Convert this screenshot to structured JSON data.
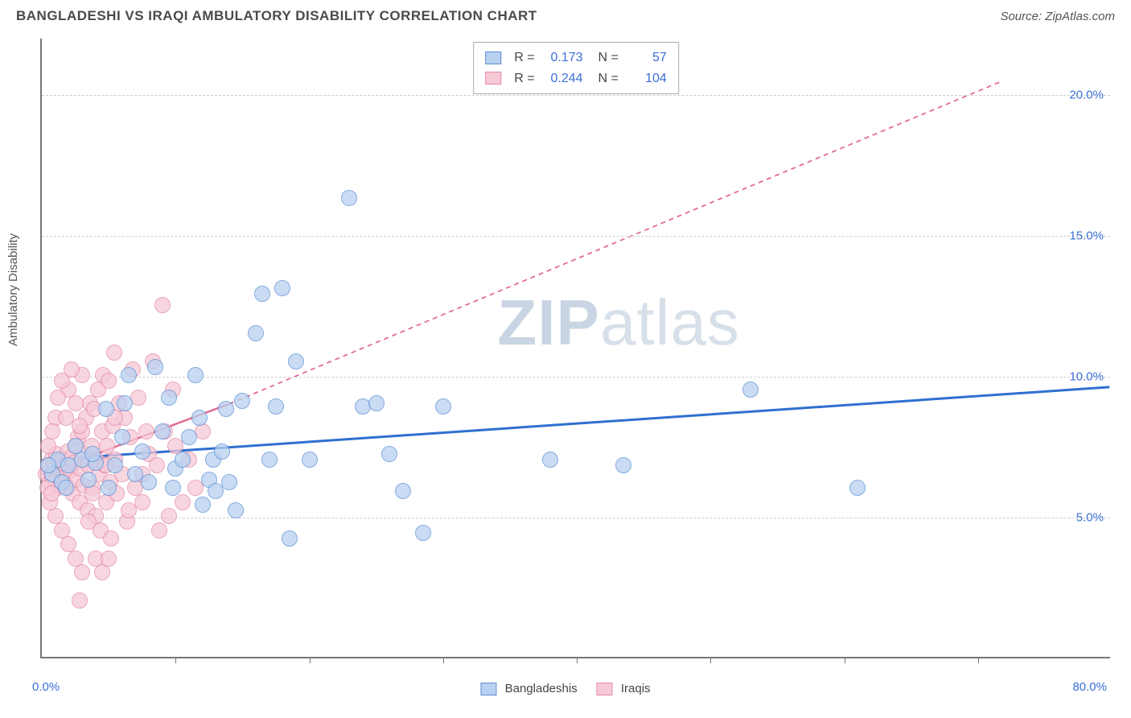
{
  "title": "BANGLADESHI VS IRAQI AMBULATORY DISABILITY CORRELATION CHART",
  "source_label": "Source: ZipAtlas.com",
  "y_axis_label": "Ambulatory Disability",
  "watermark": {
    "part1": "ZIP",
    "part2": "atlas"
  },
  "chart": {
    "type": "scatter",
    "background_color": "#ffffff",
    "grid_color": "#d0d0d0",
    "axis_color": "#777777",
    "xlim": [
      0,
      80
    ],
    "ylim": [
      0,
      22
    ],
    "x_ticks": [
      10,
      20,
      30,
      40,
      50,
      60,
      70
    ],
    "y_grid": [
      {
        "value": 5,
        "label": "5.0%"
      },
      {
        "value": 10,
        "label": "10.0%"
      },
      {
        "value": 15,
        "label": "15.0%"
      },
      {
        "value": 20,
        "label": "20.0%"
      }
    ],
    "x_origin_label": "0.0%",
    "x_max_label": "80.0%",
    "series": [
      {
        "key": "bangladeshis",
        "label": "Bangladeshis",
        "marker_fill": "#b9d1f0",
        "marker_stroke": "#5a8fd6",
        "marker_opacity": 0.75,
        "marker_radius": 10,
        "trend": {
          "x1": 0,
          "y1": 7.0,
          "x2": 80,
          "y2": 9.6,
          "color": "#2f6fd0",
          "width": 3,
          "dash": "none"
        },
        "stats": {
          "R": "0.173",
          "N": "57"
        },
        "points": [
          [
            0.8,
            6.5
          ],
          [
            1.2,
            7.0
          ],
          [
            1.5,
            6.2
          ],
          [
            2.0,
            6.8
          ],
          [
            3.0,
            7.0
          ],
          [
            3.5,
            6.3
          ],
          [
            4.0,
            6.9
          ],
          [
            5.0,
            6.0
          ],
          [
            5.5,
            6.8
          ],
          [
            6.0,
            7.8
          ],
          [
            6.5,
            10.0
          ],
          [
            7.0,
            6.5
          ],
          [
            7.5,
            7.3
          ],
          [
            8.0,
            6.2
          ],
          [
            8.5,
            10.3
          ],
          [
            9.0,
            8.0
          ],
          [
            9.5,
            9.2
          ],
          [
            10.0,
            6.7
          ],
          [
            10.5,
            7.0
          ],
          [
            11.0,
            7.8
          ],
          [
            11.5,
            10.0
          ],
          [
            12.0,
            5.4
          ],
          [
            12.5,
            6.3
          ],
          [
            12.8,
            7.0
          ],
          [
            13.0,
            5.9
          ],
          [
            13.5,
            7.3
          ],
          [
            13.8,
            8.8
          ],
          [
            14.0,
            6.2
          ],
          [
            14.5,
            5.2
          ],
          [
            15.0,
            9.1
          ],
          [
            16.0,
            11.5
          ],
          [
            16.5,
            12.9
          ],
          [
            17.0,
            7.0
          ],
          [
            17.5,
            8.9
          ],
          [
            18.0,
            13.1
          ],
          [
            18.5,
            4.2
          ],
          [
            19.0,
            10.5
          ],
          [
            20.0,
            7.0
          ],
          [
            23.0,
            16.3
          ],
          [
            24.0,
            8.9
          ],
          [
            25.0,
            9.0
          ],
          [
            26.0,
            7.2
          ],
          [
            27.0,
            5.9
          ],
          [
            28.5,
            4.4
          ],
          [
            30.0,
            8.9
          ],
          [
            38.0,
            7.0
          ],
          [
            53.0,
            9.5
          ],
          [
            61.0,
            6.0
          ],
          [
            43.5,
            6.8
          ],
          [
            4.8,
            8.8
          ],
          [
            6.2,
            9.0
          ],
          [
            2.5,
            7.5
          ],
          [
            1.8,
            6.0
          ],
          [
            0.5,
            6.8
          ],
          [
            3.8,
            7.2
          ],
          [
            9.8,
            6.0
          ],
          [
            11.8,
            8.5
          ]
        ]
      },
      {
        "key": "iraqis",
        "label": "Iraqis",
        "marker_fill": "#f6c9d6",
        "marker_stroke": "#e48aa5",
        "marker_opacity": 0.75,
        "marker_radius": 10,
        "trend": {
          "x1": 0,
          "y1": 6.5,
          "x2": 14,
          "y2": 9.0,
          "color": "#e06a8c",
          "width": 2.5,
          "dash": "none",
          "ext_x2": 72,
          "ext_y2": 20.5,
          "ext_dash": "6,5"
        },
        "stats": {
          "R": "0.244",
          "N": "104"
        },
        "points": [
          [
            0.3,
            6.5
          ],
          [
            0.5,
            6.8
          ],
          [
            0.6,
            6.2
          ],
          [
            0.7,
            7.0
          ],
          [
            0.8,
            6.4
          ],
          [
            0.9,
            6.9
          ],
          [
            1.0,
            6.3
          ],
          [
            1.1,
            7.2
          ],
          [
            1.2,
            6.0
          ],
          [
            1.3,
            6.7
          ],
          [
            1.4,
            6.1
          ],
          [
            1.5,
            7.0
          ],
          [
            1.6,
            6.5
          ],
          [
            1.7,
            6.2
          ],
          [
            1.8,
            6.8
          ],
          [
            1.9,
            7.3
          ],
          [
            2.0,
            6.0
          ],
          [
            2.1,
            6.6
          ],
          [
            2.2,
            7.1
          ],
          [
            2.3,
            5.8
          ],
          [
            2.4,
            6.9
          ],
          [
            2.5,
            7.5
          ],
          [
            2.6,
            6.3
          ],
          [
            2.7,
            7.8
          ],
          [
            2.8,
            5.5
          ],
          [
            2.9,
            6.7
          ],
          [
            3.0,
            8.0
          ],
          [
            3.1,
            6.1
          ],
          [
            3.2,
            7.2
          ],
          [
            3.3,
            8.5
          ],
          [
            3.4,
            5.2
          ],
          [
            3.5,
            6.8
          ],
          [
            3.6,
            9.0
          ],
          [
            3.7,
            7.5
          ],
          [
            3.8,
            6.0
          ],
          [
            3.9,
            8.8
          ],
          [
            4.0,
            5.0
          ],
          [
            4.1,
            7.0
          ],
          [
            4.2,
            9.5
          ],
          [
            4.3,
            6.5
          ],
          [
            4.4,
            4.5
          ],
          [
            4.5,
            8.0
          ],
          [
            4.6,
            10.0
          ],
          [
            4.7,
            6.8
          ],
          [
            4.8,
            5.5
          ],
          [
            4.9,
            7.5
          ],
          [
            5.0,
            9.8
          ],
          [
            5.1,
            6.2
          ],
          [
            5.2,
            4.2
          ],
          [
            5.3,
            8.2
          ],
          [
            5.4,
            10.8
          ],
          [
            5.5,
            7.0
          ],
          [
            5.6,
            5.8
          ],
          [
            5.8,
            9.0
          ],
          [
            6.0,
            6.5
          ],
          [
            6.2,
            8.5
          ],
          [
            6.4,
            4.8
          ],
          [
            6.6,
            7.8
          ],
          [
            6.8,
            10.2
          ],
          [
            7.0,
            6.0
          ],
          [
            7.2,
            9.2
          ],
          [
            7.5,
            5.5
          ],
          [
            7.8,
            8.0
          ],
          [
            8.0,
            7.2
          ],
          [
            8.3,
            10.5
          ],
          [
            8.6,
            6.8
          ],
          [
            9.0,
            12.5
          ],
          [
            9.2,
            8.0
          ],
          [
            9.5,
            5.0
          ],
          [
            1.0,
            5.0
          ],
          [
            1.5,
            4.5
          ],
          [
            2.0,
            4.0
          ],
          [
            2.5,
            3.5
          ],
          [
            3.0,
            3.0
          ],
          [
            2.8,
            2.0
          ],
          [
            3.5,
            4.8
          ],
          [
            4.0,
            3.5
          ],
          [
            4.5,
            3.0
          ],
          [
            5.0,
            3.5
          ],
          [
            2.0,
            9.5
          ],
          [
            2.5,
            9.0
          ],
          [
            3.0,
            10.0
          ],
          [
            1.5,
            9.8
          ],
          [
            1.0,
            8.5
          ],
          [
            0.8,
            8.0
          ],
          [
            1.2,
            9.2
          ],
          [
            1.8,
            8.5
          ],
          [
            2.2,
            10.2
          ],
          [
            0.5,
            7.5
          ],
          [
            0.6,
            5.5
          ],
          [
            0.4,
            6.0
          ],
          [
            0.7,
            5.8
          ],
          [
            11.0,
            7.0
          ],
          [
            11.5,
            6.0
          ],
          [
            12.0,
            8.0
          ],
          [
            10.0,
            7.5
          ],
          [
            10.5,
            5.5
          ],
          [
            9.8,
            9.5
          ],
          [
            8.8,
            4.5
          ],
          [
            7.5,
            6.5
          ],
          [
            6.5,
            5.2
          ],
          [
            5.5,
            8.5
          ],
          [
            4.8,
            6.8
          ],
          [
            3.8,
            5.8
          ],
          [
            2.8,
            8.2
          ]
        ]
      }
    ],
    "bottom_legend": [
      {
        "label": "Bangladeshis",
        "fill": "#b9d1f0",
        "stroke": "#5a8fd6"
      },
      {
        "label": "Iraqis",
        "fill": "#f6c9d6",
        "stroke": "#e48aa5"
      }
    ]
  }
}
